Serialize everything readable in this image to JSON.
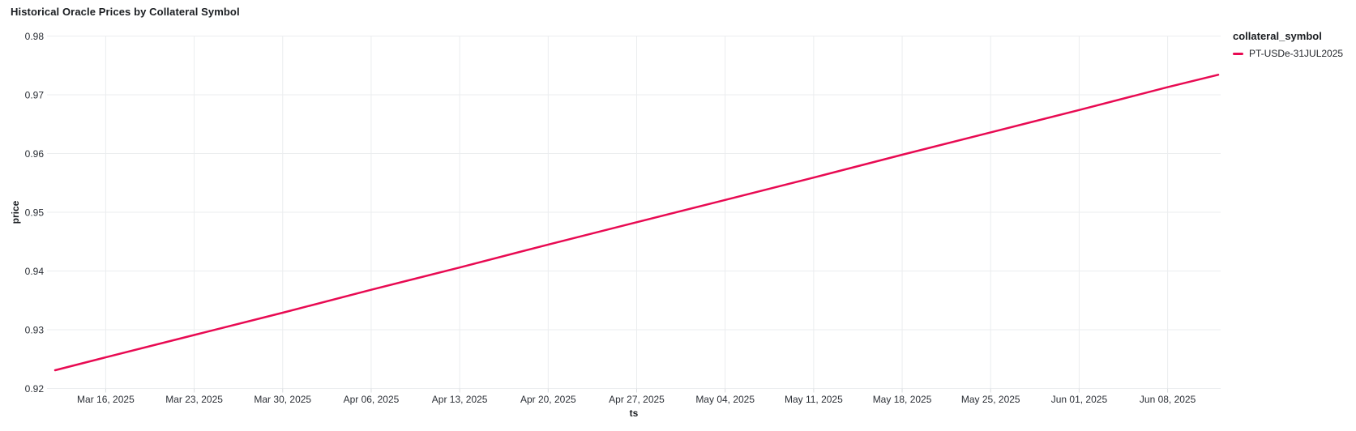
{
  "header": {
    "title": "Historical Oracle Prices by Collateral Symbol"
  },
  "legend": {
    "title": "collateral_symbol",
    "items": [
      {
        "label": "PT-USDe-31JUL2025",
        "color": "#e80a52"
      }
    ]
  },
  "colors": {
    "line": "#e80a52",
    "grid": "#ebedef",
    "tick_mark": "#d9dcdf",
    "tick_text": "#2b2f36",
    "background": "#ffffff"
  },
  "chart_data": {
    "type": "line",
    "title": "Historical Oracle Prices by Collateral Symbol",
    "xlabel": "ts",
    "ylabel": "price",
    "grid": true,
    "legend_position": "top-right",
    "ylim": [
      0.92,
      0.98
    ],
    "y_ticks": [
      "0.92",
      "0.93",
      "0.94",
      "0.95",
      "0.96",
      "0.97",
      "0.98"
    ],
    "x_domain": [
      "Mar 12, 2025",
      "Jun 12, 2025"
    ],
    "x_ticks": [
      "Mar 16, 2025",
      "Mar 23, 2025",
      "Mar 30, 2025",
      "Apr 06, 2025",
      "Apr 13, 2025",
      "Apr 20, 2025",
      "Apr 27, 2025",
      "May 04, 2025",
      "May 11, 2025",
      "May 18, 2025",
      "May 25, 2025",
      "Jun 01, 2025",
      "Jun 08, 2025"
    ],
    "series": [
      {
        "name": "PT-USDe-31JUL2025",
        "color": "#e80a52",
        "points": [
          {
            "date": "Mar 12, 2025",
            "price": 0.9231
          },
          {
            "date": "Mar 16, 2025",
            "price": 0.9253
          },
          {
            "date": "Mar 23, 2025",
            "price": 0.9291
          },
          {
            "date": "Mar 30, 2025",
            "price": 0.9329
          },
          {
            "date": "Apr 06, 2025",
            "price": 0.9368
          },
          {
            "date": "Apr 13, 2025",
            "price": 0.9406
          },
          {
            "date": "Apr 20, 2025",
            "price": 0.9445
          },
          {
            "date": "Apr 27, 2025",
            "price": 0.9483
          },
          {
            "date": "May 04, 2025",
            "price": 0.9521
          },
          {
            "date": "May 11, 2025",
            "price": 0.9559
          },
          {
            "date": "May 18, 2025",
            "price": 0.9598
          },
          {
            "date": "May 25, 2025",
            "price": 0.9636
          },
          {
            "date": "Jun 01, 2025",
            "price": 0.9674
          },
          {
            "date": "Jun 08, 2025",
            "price": 0.9713
          },
          {
            "date": "Jun 12, 2025",
            "price": 0.9734
          }
        ]
      }
    ]
  }
}
